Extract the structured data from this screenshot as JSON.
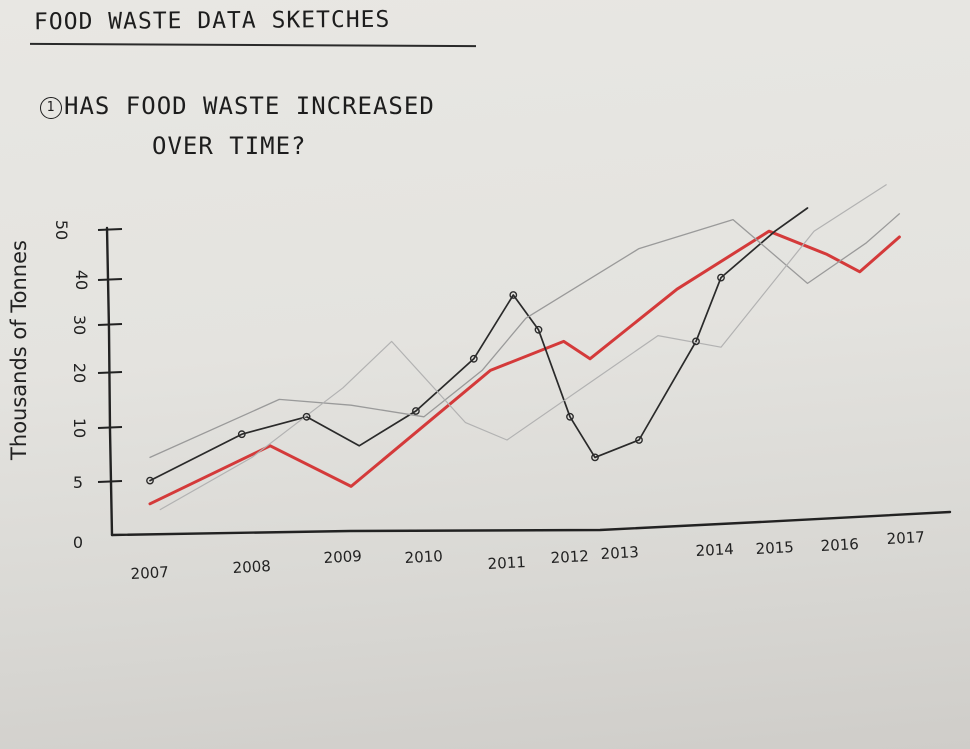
{
  "page": {
    "title": "FOOD WASTE DATA SKETCHES",
    "question_number": "1",
    "question_line1": "HAS FOOD WASTE INCREASED",
    "question_line2": "OVER TIME?"
  },
  "chart_data": {
    "type": "line",
    "title": "",
    "xlabel": "",
    "ylabel": "Thousands of Tonnes",
    "x_ticks": [
      "2007",
      "2008",
      "2009",
      "2010",
      "2011",
      "2012",
      "2013",
      "2014",
      "2015",
      "2016",
      "2017"
    ],
    "y_ticks": [
      "0",
      "5",
      "10",
      "20",
      "30",
      "40",
      "50"
    ],
    "ylim": [
      0,
      50
    ],
    "grid": false,
    "legend": "none",
    "series": [
      {
        "color": "#d43a3a",
        "x": [
          2007,
          2008.2,
          2009.1,
          2010.8,
          2011.9,
          2012.4,
          2013.6,
          2014.9,
          2015.8,
          2016.3,
          2016.9
        ],
        "y": [
          4,
          14,
          7,
          27,
          32,
          29,
          41,
          51,
          47,
          44,
          50
        ]
      },
      {
        "color": "#2a2a2a",
        "x": [
          2007,
          2007.9,
          2008.6,
          2009.2,
          2009.9,
          2010.6,
          2011.1,
          2011.5,
          2012,
          2012.5,
          2013.2,
          2013.8,
          2014.1,
          2015,
          2015.5
        ],
        "y": [
          8,
          16,
          19,
          14,
          20,
          29,
          40,
          34,
          19,
          12,
          15,
          32,
          43,
          51,
          55
        ]
      },
      {
        "color": "#9a9a9a",
        "x": [
          2007,
          2008.3,
          2009.1,
          2010,
          2010.7,
          2011.3,
          2013.2,
          2014.3,
          2015.5,
          2016.4,
          2016.9
        ],
        "y": [
          12,
          22,
          21,
          19,
          27,
          36,
          48,
          53,
          42,
          49,
          54
        ]
      },
      {
        "color": "#b2b2b2",
        "x": [
          2007.1,
          2008,
          2009,
          2009.6,
          2010.5,
          2011,
          2013.4,
          2014.1,
          2015.6,
          2016.7
        ],
        "y": [
          3,
          12,
          24,
          32,
          18,
          15,
          33,
          31,
          51,
          59
        ]
      }
    ],
    "points": [
      {
        "x": 2007,
        "y": 8
      },
      {
        "x": 2007.9,
        "y": 16
      },
      {
        "x": 2008.6,
        "y": 19
      },
      {
        "x": 2009.9,
        "y": 20
      },
      {
        "x": 2010.6,
        "y": 29
      },
      {
        "x": 2011.1,
        "y": 40
      },
      {
        "x": 2011.5,
        "y": 34
      },
      {
        "x": 2012,
        "y": 19
      },
      {
        "x": 2012.5,
        "y": 12
      },
      {
        "x": 2013.2,
        "y": 15
      },
      {
        "x": 2013.8,
        "y": 32
      },
      {
        "x": 2014.1,
        "y": 43
      }
    ]
  }
}
